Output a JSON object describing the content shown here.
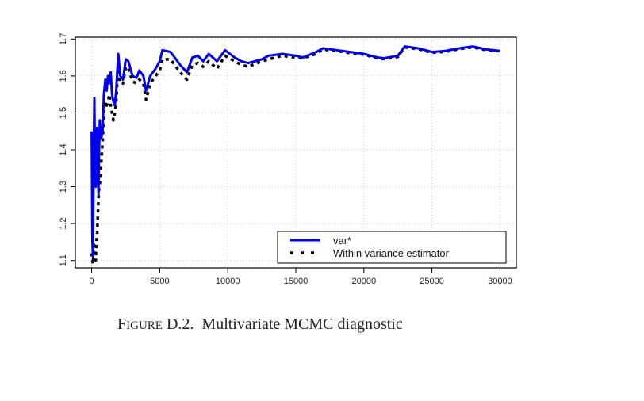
{
  "chart_data": {
    "type": "line",
    "title": "",
    "xlabel": "",
    "ylabel": "",
    "xlim": [
      -1200,
      31200
    ],
    "ylim": [
      1.08,
      1.705
    ],
    "xticks": [
      "0",
      "5000",
      "10000",
      "15000",
      "20000",
      "25000",
      "30000"
    ],
    "yticks": [
      "1.1",
      "1.2",
      "1.3",
      "1.4",
      "1.5",
      "1.6",
      "1.7"
    ],
    "grid": true,
    "legend_position": "bottom-right",
    "series": [
      {
        "name": "var*",
        "color": "#0000ee",
        "style": "solid",
        "x": [
          0,
          50,
          100,
          150,
          200,
          250,
          300,
          350,
          400,
          450,
          500,
          550,
          600,
          700,
          800,
          900,
          1000,
          1100,
          1200,
          1300,
          1400,
          1500,
          1600,
          1700,
          1800,
          1950,
          2100,
          2300,
          2500,
          2700,
          3000,
          3300,
          3500,
          3800,
          4000,
          4300,
          4700,
          5000,
          5200,
          5800,
          6500,
          7000,
          7400,
          7800,
          8200,
          8600,
          9200,
          9800,
          10500,
          11000,
          11500,
          12500,
          13000,
          14000,
          15000,
          15500,
          16500,
          17000,
          18000,
          19000,
          20000,
          21000,
          21500,
          22500,
          23000,
          24000,
          25000,
          26000,
          27000,
          28000,
          29000,
          30000
        ],
        "y": [
          1.45,
          1.15,
          1.11,
          1.4,
          1.54,
          1.35,
          1.3,
          1.41,
          1.46,
          1.35,
          1.28,
          1.4,
          1.48,
          1.43,
          1.45,
          1.55,
          1.59,
          1.56,
          1.6,
          1.58,
          1.61,
          1.55,
          1.53,
          1.52,
          1.56,
          1.66,
          1.6,
          1.59,
          1.645,
          1.64,
          1.6,
          1.595,
          1.615,
          1.6,
          1.56,
          1.6,
          1.62,
          1.64,
          1.67,
          1.665,
          1.63,
          1.61,
          1.65,
          1.655,
          1.64,
          1.66,
          1.64,
          1.67,
          1.65,
          1.64,
          1.635,
          1.645,
          1.655,
          1.66,
          1.655,
          1.65,
          1.665,
          1.675,
          1.67,
          1.665,
          1.66,
          1.65,
          1.648,
          1.655,
          1.68,
          1.675,
          1.665,
          1.668,
          1.675,
          1.68,
          1.672,
          1.668
        ]
      },
      {
        "name": "Within variance estimator",
        "color": "#000000",
        "style": "dotted",
        "x": [
          0,
          50,
          100,
          150,
          200,
          250,
          300,
          350,
          400,
          450,
          500,
          550,
          600,
          700,
          800,
          900,
          1000,
          1100,
          1200,
          1300,
          1400,
          1500,
          1600,
          1700,
          1800,
          1950,
          2100,
          2300,
          2500,
          2700,
          3000,
          3300,
          3500,
          3800,
          4000,
          4300,
          4700,
          5000,
          5200,
          5800,
          6500,
          7000,
          7400,
          7800,
          8200,
          8600,
          9200,
          9800,
          10500,
          11000,
          11500,
          12500,
          13000,
          14000,
          15000,
          15500,
          16500,
          17000,
          18000,
          19000,
          20000,
          21000,
          21500,
          22500,
          23000,
          24000,
          25000,
          26000,
          27000,
          28000,
          29000,
          30000
        ],
        "y": [
          1.12,
          1.1,
          1.09,
          1.15,
          1.14,
          1.13,
          1.1,
          1.15,
          1.17,
          1.22,
          1.27,
          1.3,
          1.31,
          1.36,
          1.42,
          1.5,
          1.53,
          1.52,
          1.53,
          1.55,
          1.52,
          1.5,
          1.48,
          1.5,
          1.53,
          1.63,
          1.58,
          1.58,
          1.625,
          1.62,
          1.585,
          1.58,
          1.59,
          1.58,
          1.535,
          1.58,
          1.6,
          1.615,
          1.645,
          1.645,
          1.61,
          1.59,
          1.63,
          1.635,
          1.625,
          1.64,
          1.62,
          1.655,
          1.64,
          1.63,
          1.625,
          1.64,
          1.645,
          1.655,
          1.65,
          1.648,
          1.66,
          1.672,
          1.668,
          1.662,
          1.658,
          1.648,
          1.646,
          1.652,
          1.678,
          1.673,
          1.663,
          1.666,
          1.673,
          1.678,
          1.67,
          1.667
        ]
      }
    ]
  },
  "caption": {
    "figure_first": "F",
    "figure_rest": "igure",
    "label": "D.2.",
    "text": "Multivariate MCMC diagnostic"
  }
}
